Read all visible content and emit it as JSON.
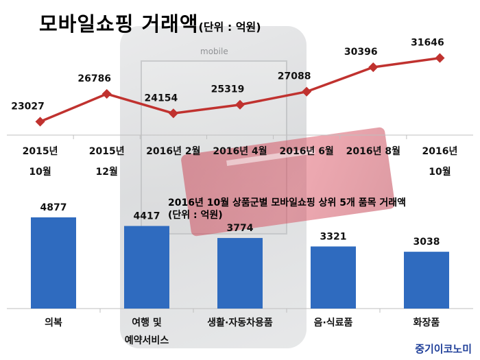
{
  "title": {
    "main": "모바일쇼핑 거래액",
    "unit": "(단위 : 억원)"
  },
  "title2": {
    "line1": "2016년 10월 상품군별 모바일쇼핑 상위 5개 품목 거래액",
    "line2": "(단위 : 억원)"
  },
  "brand": "중기이코노미",
  "background": {
    "phone_label": "mobile"
  },
  "colors": {
    "line": "#c0322f",
    "bar": "#2f6bbf",
    "axis": "#bfbfbf"
  },
  "chart_data": [
    {
      "type": "line",
      "title": "모바일쇼핑 거래액",
      "unit": "(단위 : 억원)",
      "categories": [
        [
          "2015년",
          "10월"
        ],
        [
          "2015년",
          "12월"
        ],
        [
          "2016년 2월"
        ],
        [
          "2016년 4월"
        ],
        [
          "2016년 6월"
        ],
        [
          "2016년 8월"
        ],
        [
          "2016년",
          "10월"
        ]
      ],
      "values": [
        23027,
        26786,
        24154,
        25319,
        27088,
        30396,
        31646
      ],
      "ylim": [
        20000,
        33000
      ],
      "grid": false
    },
    {
      "type": "bar",
      "title": "2016년 10월 상품군별 모바일쇼핑 상위 5개 품목 거래액",
      "unit": "(단위 : 억원)",
      "categories": [
        [
          "의복"
        ],
        [
          "여행 및",
          "예약서비스"
        ],
        [
          "생활·자동차용품"
        ],
        [
          "음·식료품"
        ],
        [
          "화장품"
        ]
      ],
      "values": [
        4877,
        4417,
        3774,
        3321,
        3038
      ],
      "ylim": [
        0,
        5500
      ],
      "grid": false
    }
  ]
}
